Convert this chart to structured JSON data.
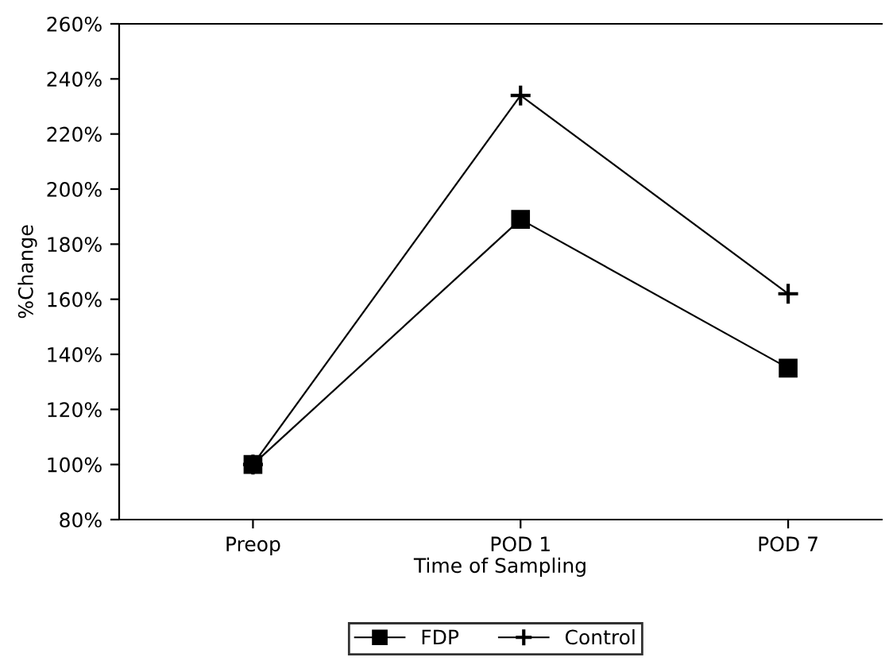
{
  "chart_data": {
    "type": "line",
    "xlabel": "Time of Sampling",
    "ylabel": "%Change",
    "categories": [
      "Preop",
      "POD 1",
      "POD 7"
    ],
    "series": [
      {
        "name": "FDP",
        "color": "#000000",
        "marker": "square",
        "values": [
          100,
          189,
          135
        ]
      },
      {
        "name": "Control",
        "color": "#000000",
        "marker": "cross",
        "values": [
          100,
          234,
          162
        ]
      }
    ],
    "ylim": [
      80,
      260
    ],
    "yticks": [
      {
        "value": 80,
        "label": "80%"
      },
      {
        "value": 100,
        "label": "100%"
      },
      {
        "value": 120,
        "label": "120%"
      },
      {
        "value": 140,
        "label": "140%"
      },
      {
        "value": 160,
        "label": "160%"
      },
      {
        "value": 180,
        "label": "180%"
      },
      {
        "value": 200,
        "label": "200%"
      },
      {
        "value": 220,
        "label": "220%"
      },
      {
        "value": 240,
        "label": "240%"
      },
      {
        "value": 260,
        "label": "260%"
      }
    ],
    "grid": false,
    "legend": "bottom",
    "line_style": "solid"
  }
}
